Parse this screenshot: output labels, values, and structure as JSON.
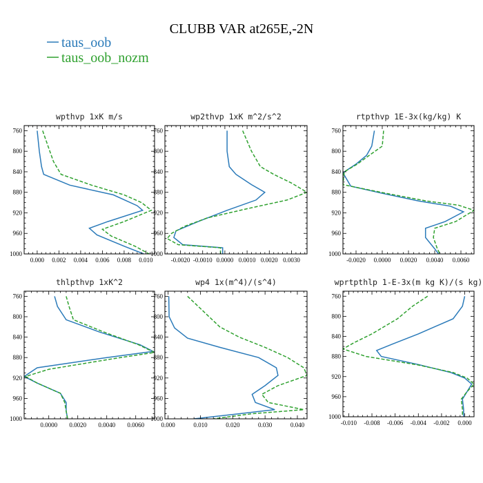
{
  "title": "CLUBB VAR at265E,-2N",
  "legend": [
    {
      "label": "taus_oob",
      "color": "#2a7ab9",
      "dash": "solid"
    },
    {
      "label": "taus_oob_nozm",
      "color": "#2fa12f",
      "dash": "dashed"
    }
  ],
  "chart_data": [
    {
      "type": "line",
      "title": "wpthvp  1xK m/s",
      "xlim": [
        -0.0012,
        0.0108
      ],
      "ylim": [
        1000,
        750
      ],
      "xticks": [
        0,
        0.002,
        0.004,
        0.006,
        0.008,
        0.01
      ],
      "xtick_labels": [
        "0.000",
        "0.002",
        "0.004",
        "0.006",
        "0.008",
        "0.010"
      ],
      "yticks": [
        760,
        800,
        840,
        880,
        920,
        960,
        1000
      ],
      "ytick_labels": [
        "760",
        "800",
        "840",
        "880",
        "920",
        "960",
        "1000"
      ],
      "series": [
        {
          "name": "taus_oob",
          "points": [
            [
              0.0,
              760
            ],
            [
              0.0002,
              800
            ],
            [
              0.0004,
              830
            ],
            [
              0.0006,
              845
            ],
            [
              0.003,
              866
            ],
            [
              0.007,
              885
            ],
            [
              0.0092,
              906
            ],
            [
              0.0097,
              915
            ],
            [
              0.0065,
              937
            ],
            [
              0.0048,
              950
            ],
            [
              0.0055,
              963
            ],
            [
              0.008,
              985
            ],
            [
              0.0098,
              1000
            ]
          ]
        },
        {
          "name": "taus_oob_nozm",
          "points": [
            [
              0.0005,
              760
            ],
            [
              0.001,
              790
            ],
            [
              0.0015,
              820
            ],
            [
              0.0022,
              845
            ],
            [
              0.005,
              866
            ],
            [
              0.008,
              885
            ],
            [
              0.0096,
              900
            ],
            [
              0.0105,
              915
            ],
            [
              0.008,
              937
            ],
            [
              0.006,
              952
            ],
            [
              0.0068,
              965
            ],
            [
              0.009,
              985
            ],
            [
              0.0103,
              1000
            ]
          ]
        }
      ]
    },
    {
      "type": "line",
      "title": "wp2thvp  1xK m^2/s^2",
      "xlim": [
        -0.0027,
        0.0037
      ],
      "ylim": [
        1000,
        750
      ],
      "xticks": [
        -0.002,
        -0.001,
        0,
        0.001,
        0.002,
        0.003
      ],
      "xtick_labels": [
        "-0.0020",
        "-0.0010",
        "0.0000",
        "0.0010",
        "0.0020",
        "0.0030"
      ],
      "yticks": [
        760,
        800,
        840,
        880,
        920,
        960,
        1000
      ],
      "ytick_labels": [
        "760",
        "800",
        "840",
        "880",
        "920",
        "960",
        "1000"
      ],
      "series": [
        {
          "name": "taus_oob",
          "points": [
            [
              0.0001,
              760
            ],
            [
              0.0001,
              800
            ],
            [
              0.0002,
              830
            ],
            [
              0.0005,
              845
            ],
            [
              0.0012,
              865
            ],
            [
              0.0018,
              880
            ],
            [
              0.0014,
              895
            ],
            [
              0.0001,
              915
            ],
            [
              -0.0012,
              937
            ],
            [
              -0.0022,
              955
            ],
            [
              -0.0023,
              968
            ],
            [
              -0.0019,
              982
            ],
            [
              -0.0001,
              988
            ],
            [
              -0.0001,
              1000
            ]
          ]
        },
        {
          "name": "taus_oob_nozm",
          "points": [
            [
              0.0008,
              760
            ],
            [
              0.0012,
              800
            ],
            [
              0.0016,
              830
            ],
            [
              0.0022,
              845
            ],
            [
              0.003,
              862
            ],
            [
              0.0037,
              880
            ],
            [
              0.0028,
              895
            ],
            [
              0.001,
              912
            ],
            [
              -0.0008,
              930
            ],
            [
              -0.0018,
              946
            ],
            [
              -0.0024,
              960
            ],
            [
              -0.0026,
              970
            ],
            [
              -0.0021,
              982
            ],
            [
              -0.0002,
              988
            ],
            [
              -0.0002,
              1000
            ]
          ]
        }
      ]
    },
    {
      "type": "line",
      "title": "rtpthvp  1E-3x(kg/kg) K",
      "xlim": [
        -0.003,
        0.007
      ],
      "ylim": [
        1000,
        750
      ],
      "xticks": [
        -0.002,
        0,
        0.002,
        0.004,
        0.006
      ],
      "xtick_labels": [
        "-0.0020",
        "0.0000",
        "0.0020",
        "0.0040",
        "0.0060"
      ],
      "yticks": [
        760,
        800,
        840,
        880,
        920,
        960,
        1000
      ],
      "ytick_labels": [
        "760",
        "800",
        "840",
        "880",
        "920",
        "960",
        "1000"
      ],
      "series": [
        {
          "name": "taus_oob",
          "points": [
            [
              -0.0006,
              760
            ],
            [
              -0.0008,
              790
            ],
            [
              -0.0012,
              808
            ],
            [
              -0.002,
              825
            ],
            [
              -0.003,
              842
            ],
            [
              -0.0024,
              868
            ],
            [
              0.0,
              882
            ],
            [
              0.0028,
              897
            ],
            [
              0.0052,
              907
            ],
            [
              0.0062,
              918
            ],
            [
              0.0048,
              937
            ],
            [
              0.0033,
              950
            ],
            [
              0.0033,
              968
            ],
            [
              0.004,
              990
            ],
            [
              0.0043,
              1000
            ]
          ]
        },
        {
          "name": "taus_oob_nozm",
          "points": [
            [
              0.0001,
              760
            ],
            [
              0.0,
              790
            ],
            [
              -0.001,
              808
            ],
            [
              -0.0019,
              825
            ],
            [
              -0.0029,
              840
            ],
            [
              -0.003,
              865
            ],
            [
              0.0003,
              882
            ],
            [
              0.0034,
              897
            ],
            [
              0.0058,
              905
            ],
            [
              0.007,
              915
            ],
            [
              0.0056,
              937
            ],
            [
              0.004,
              950
            ],
            [
              0.0039,
              968
            ],
            [
              0.0042,
              990
            ],
            [
              0.0044,
              1000
            ]
          ]
        }
      ]
    },
    {
      "type": "line",
      "title": "thlpthvp  1xK^2",
      "xlim": [
        -0.0017,
        0.0073
      ],
      "ylim": [
        1000,
        750
      ],
      "xticks": [
        0,
        0.002,
        0.004,
        0.006
      ],
      "xtick_labels": [
        "0.0000",
        "0.0020",
        "0.0040",
        "0.0060"
      ],
      "yticks": [
        760,
        800,
        840,
        880,
        920,
        960,
        1000
      ],
      "ytick_labels": [
        "760",
        "800",
        "840",
        "880",
        "920",
        "960",
        "1000"
      ],
      "series": [
        {
          "name": "taus_oob",
          "points": [
            [
              0.0004,
              760
            ],
            [
              0.0006,
              780
            ],
            [
              0.0012,
              806
            ],
            [
              0.0035,
              830
            ],
            [
              0.0063,
              855
            ],
            [
              0.0072,
              868
            ],
            [
              0.004,
              880
            ],
            [
              -0.0008,
              900
            ],
            [
              -0.0017,
              917
            ],
            [
              -0.0008,
              930
            ],
            [
              0.0008,
              950
            ],
            [
              0.0012,
              968
            ],
            [
              0.0012,
              985
            ],
            [
              0.0013,
              1000
            ]
          ]
        },
        {
          "name": "taus_oob_nozm",
          "points": [
            [
              0.0012,
              760
            ],
            [
              0.0014,
              780
            ],
            [
              0.0017,
              806
            ],
            [
              0.0038,
              830
            ],
            [
              0.0062,
              855
            ],
            [
              0.0073,
              870
            ],
            [
              0.0045,
              882
            ],
            [
              0.0,
              903
            ],
            [
              -0.0016,
              917
            ],
            [
              -0.0008,
              930
            ],
            [
              0.0008,
              950
            ],
            [
              0.0011,
              968
            ],
            [
              0.0012,
              985
            ],
            [
              0.0013,
              1000
            ]
          ]
        }
      ]
    },
    {
      "type": "line",
      "title": "wp4  1x(m^4)/(s^4)",
      "xlim": [
        -0.001,
        0.043
      ],
      "ylim": [
        1000,
        750
      ],
      "xticks": [
        0,
        0.01,
        0.02,
        0.03,
        0.04
      ],
      "xtick_labels": [
        "0.000",
        "0.010",
        "0.020",
        "0.030",
        "0.040"
      ],
      "yticks": [
        760,
        800,
        840,
        880,
        920,
        960,
        1000
      ],
      "ytick_labels": [
        "760",
        "800",
        "840",
        "880",
        "920",
        "960",
        "1000"
      ],
      "series": [
        {
          "name": "taus_oob",
          "points": [
            [
              0.0002,
              760
            ],
            [
              0.0003,
              800
            ],
            [
              0.002,
              822
            ],
            [
              0.006,
              842
            ],
            [
              0.016,
              860
            ],
            [
              0.028,
              880
            ],
            [
              0.0335,
              900
            ],
            [
              0.034,
              915
            ],
            [
              0.03,
              935
            ],
            [
              0.026,
              952
            ],
            [
              0.027,
              968
            ],
            [
              0.033,
              982
            ],
            [
              0.022,
              990
            ],
            [
              0.008,
              1000
            ]
          ]
        },
        {
          "name": "taus_oob_nozm",
          "points": [
            [
              0.006,
              760
            ],
            [
              0.011,
              790
            ],
            [
              0.016,
              820
            ],
            [
              0.022,
              840
            ],
            [
              0.03,
              860
            ],
            [
              0.037,
              880
            ],
            [
              0.042,
              900
            ],
            [
              0.043,
              915
            ],
            [
              0.034,
              935
            ],
            [
              0.029,
              952
            ],
            [
              0.031,
              968
            ],
            [
              0.042,
              982
            ],
            [
              0.026,
              990
            ],
            [
              0.014,
              1000
            ]
          ]
        }
      ]
    },
    {
      "type": "line",
      "title": "wprtpthlp  1-E-3x(m kg K)/(s kg)",
      "xlim": [
        -0.0105,
        0.0008
      ],
      "ylim": [
        1000,
        750
      ],
      "xticks": [
        -0.01,
        -0.008,
        -0.006,
        -0.004,
        -0.002,
        0
      ],
      "xtick_labels": [
        "-0.010",
        "-0.008",
        "-0.006",
        "-0.004",
        "-0.002",
        "0.000"
      ],
      "yticks": [
        760,
        800,
        840,
        880,
        920,
        960,
        1000
      ],
      "ytick_labels": [
        "760",
        "800",
        "840",
        "880",
        "920",
        "960",
        "1000"
      ],
      "series": [
        {
          "name": "taus_oob",
          "points": [
            [
              0.0,
              760
            ],
            [
              -0.0002,
              780
            ],
            [
              -0.001,
              805
            ],
            [
              -0.004,
              835
            ],
            [
              -0.0062,
              855
            ],
            [
              -0.0076,
              868
            ],
            [
              -0.0072,
              880
            ],
            [
              -0.004,
              896
            ],
            [
              -0.0012,
              912
            ],
            [
              0.0,
              923
            ],
            [
              0.0006,
              935
            ],
            [
              0.0002,
              950
            ],
            [
              -0.0002,
              965
            ],
            [
              -0.0001,
              985
            ],
            [
              -0.0001,
              1000
            ]
          ]
        },
        {
          "name": "taus_oob_nozm",
          "points": [
            [
              -0.0032,
              760
            ],
            [
              -0.0045,
              780
            ],
            [
              -0.0058,
              805
            ],
            [
              -0.008,
              835
            ],
            [
              -0.0095,
              852
            ],
            [
              -0.0105,
              865
            ],
            [
              -0.0085,
              880
            ],
            [
              -0.004,
              897
            ],
            [
              -0.001,
              912
            ],
            [
              0.0002,
              923
            ],
            [
              0.0008,
              935
            ],
            [
              0.0002,
              950
            ],
            [
              -0.0003,
              965
            ],
            [
              -0.0002,
              985
            ],
            [
              -0.0002,
              1000
            ]
          ]
        }
      ]
    }
  ]
}
